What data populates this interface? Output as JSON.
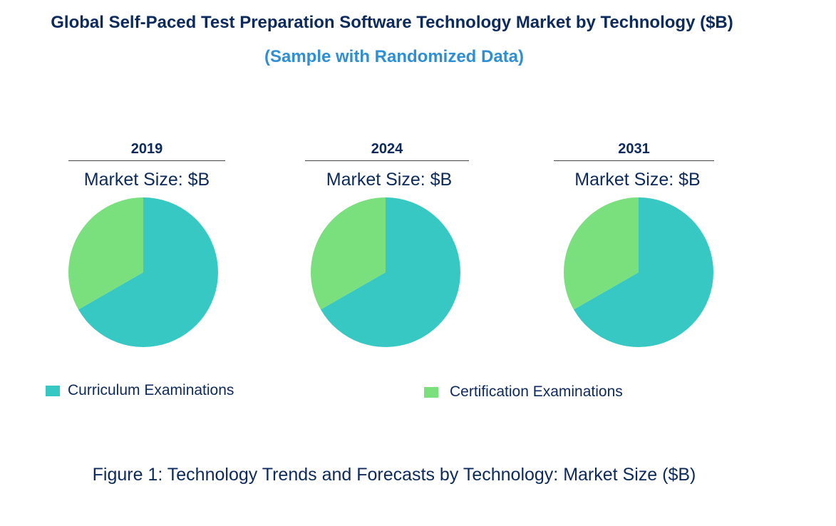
{
  "chart_data": {
    "type": "pie",
    "title": "Global Self-Paced Test Preparation Software Technology Market by Technology ($B)",
    "subtitle": "(Sample with Randomized Data)",
    "caption": "Figure 1: Technology Trends and Forecasts by Technology: Market Size ($B)",
    "market_size_label": "Market Size: $B",
    "legend_position": "bottom",
    "series_names": [
      "Curriculum Examinations",
      "Certification Examinations"
    ],
    "colors": [
      "#38c8c4",
      "#7ae07e"
    ],
    "pies": [
      {
        "year": "2019",
        "values": [
          66.7,
          33.3
        ]
      },
      {
        "year": "2024",
        "values": [
          66.7,
          33.3
        ]
      },
      {
        "year": "2031",
        "values": [
          66.7,
          33.3
        ]
      }
    ]
  }
}
